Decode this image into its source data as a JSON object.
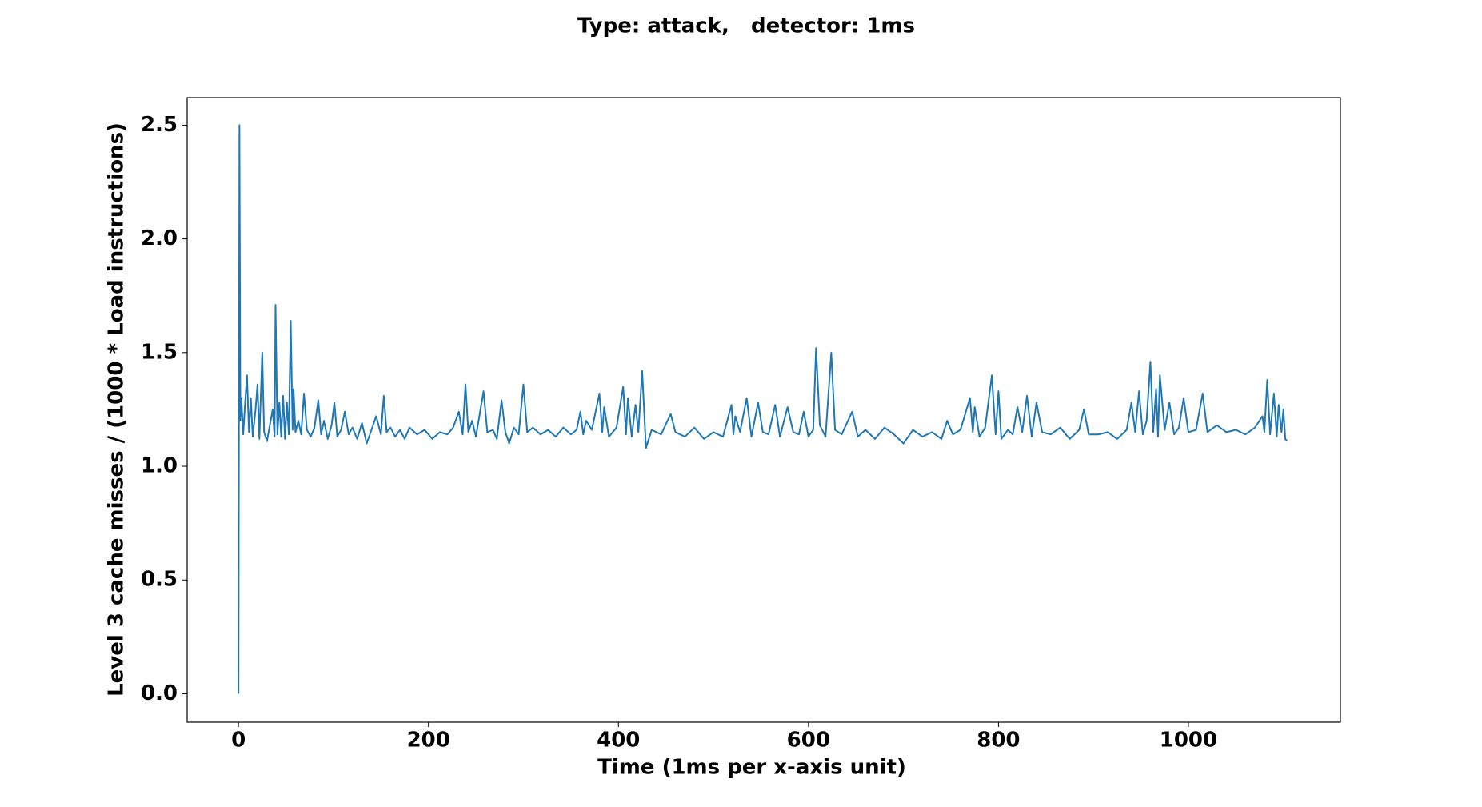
{
  "chart_data": {
    "type": "line",
    "title": "Type: attack,   detector: 1ms",
    "xlabel": "Time (1ms per x-axis unit)",
    "ylabel": "Level 3 cache misses / (1000 * Load instructions)",
    "color": "#1f77b4",
    "xlim": [
      -54,
      1160
    ],
    "ylim": [
      -0.125,
      2.621
    ],
    "xticks": [
      0,
      200,
      400,
      600,
      800,
      1000
    ],
    "yticks": [
      {
        "value": 0,
        "label": "0.0"
      },
      0.5,
      {
        "value": 1,
        "label": "1.0"
      },
      1.5,
      {
        "value": 2,
        "label": "2.0"
      },
      2.5
    ],
    "x": [
      0,
      1,
      2,
      3,
      5,
      7,
      9,
      11,
      13,
      15,
      18,
      20,
      22,
      25,
      27,
      30,
      33,
      36,
      38,
      39,
      41,
      43,
      45,
      47,
      49,
      51,
      53,
      55,
      57,
      58,
      60,
      63,
      66,
      69,
      72,
      76,
      80,
      84,
      87,
      90,
      94,
      98,
      101,
      104,
      108,
      112,
      116,
      120,
      125,
      130,
      135,
      140,
      145,
      150,
      153,
      156,
      160,
      165,
      170,
      175,
      180,
      188,
      196,
      204,
      212,
      220,
      226,
      232,
      236,
      239,
      242,
      246,
      250,
      258,
      262,
      268,
      272,
      277,
      281,
      285,
      290,
      295,
      300,
      304,
      310,
      318,
      326,
      334,
      342,
      350,
      356,
      360,
      363,
      366,
      372,
      380,
      383,
      385,
      390,
      398,
      405,
      408,
      410,
      414,
      418,
      421,
      425,
      429,
      435,
      445,
      455,
      460,
      470,
      480,
      490,
      500,
      510,
      519,
      521,
      523,
      528,
      535,
      540,
      547,
      552,
      558,
      565,
      570,
      578,
      584,
      590,
      595,
      600,
      605,
      608,
      612,
      618,
      624,
      628,
      635,
      646,
      652,
      660,
      670,
      680,
      690,
      700,
      710,
      720,
      730,
      740,
      746,
      752,
      760,
      770,
      773,
      775,
      780,
      786,
      793,
      797,
      800,
      803,
      810,
      815,
      820,
      825,
      830,
      835,
      840,
      846,
      855,
      865,
      875,
      885,
      890,
      895,
      905,
      915,
      925,
      935,
      940,
      944,
      948,
      952,
      956,
      960,
      963,
      966,
      968,
      970,
      975,
      980,
      985,
      990,
      995,
      1000,
      1008,
      1015,
      1020,
      1030,
      1040,
      1050,
      1060,
      1070,
      1078,
      1080,
      1083,
      1086,
      1090,
      1093,
      1095,
      1098,
      1100,
      1102,
      1104
    ],
    "values": [
      0.0,
      2.5,
      1.2,
      1.3,
      1.14,
      1.28,
      1.4,
      1.15,
      1.3,
      1.13,
      1.25,
      1.36,
      1.12,
      1.5,
      1.15,
      1.11,
      1.18,
      1.25,
      1.13,
      1.71,
      1.14,
      1.28,
      1.13,
      1.31,
      1.12,
      1.28,
      1.14,
      1.64,
      1.16,
      1.34,
      1.15,
      1.2,
      1.14,
      1.32,
      1.16,
      1.13,
      1.17,
      1.29,
      1.14,
      1.2,
      1.12,
      1.18,
      1.28,
      1.13,
      1.16,
      1.24,
      1.14,
      1.17,
      1.12,
      1.19,
      1.1,
      1.16,
      1.22,
      1.14,
      1.31,
      1.15,
      1.17,
      1.13,
      1.16,
      1.12,
      1.17,
      1.14,
      1.16,
      1.12,
      1.15,
      1.14,
      1.17,
      1.24,
      1.14,
      1.36,
      1.15,
      1.2,
      1.13,
      1.33,
      1.15,
      1.16,
      1.12,
      1.29,
      1.15,
      1.1,
      1.17,
      1.14,
      1.36,
      1.15,
      1.17,
      1.14,
      1.16,
      1.13,
      1.17,
      1.14,
      1.16,
      1.24,
      1.14,
      1.2,
      1.16,
      1.32,
      1.15,
      1.26,
      1.13,
      1.17,
      1.35,
      1.14,
      1.3,
      1.13,
      1.27,
      1.15,
      1.42,
      1.08,
      1.16,
      1.14,
      1.23,
      1.15,
      1.13,
      1.17,
      1.12,
      1.15,
      1.13,
      1.27,
      1.14,
      1.22,
      1.15,
      1.3,
      1.13,
      1.28,
      1.15,
      1.14,
      1.27,
      1.13,
      1.26,
      1.15,
      1.14,
      1.24,
      1.13,
      1.16,
      1.52,
      1.18,
      1.13,
      1.5,
      1.16,
      1.14,
      1.24,
      1.13,
      1.16,
      1.12,
      1.17,
      1.14,
      1.1,
      1.16,
      1.13,
      1.15,
      1.12,
      1.2,
      1.14,
      1.16,
      1.3,
      1.15,
      1.26,
      1.13,
      1.17,
      1.4,
      1.14,
      1.33,
      1.12,
      1.16,
      1.14,
      1.26,
      1.15,
      1.31,
      1.13,
      1.28,
      1.15,
      1.14,
      1.17,
      1.12,
      1.16,
      1.25,
      1.14,
      1.14,
      1.15,
      1.12,
      1.16,
      1.28,
      1.15,
      1.33,
      1.14,
      1.2,
      1.46,
      1.15,
      1.34,
      1.13,
      1.4,
      1.16,
      1.28,
      1.14,
      1.17,
      1.3,
      1.15,
      1.16,
      1.32,
      1.15,
      1.18,
      1.15,
      1.16,
      1.14,
      1.17,
      1.22,
      1.15,
      1.38,
      1.14,
      1.32,
      1.13,
      1.27,
      1.15,
      1.25,
      1.12,
      1.11
    ]
  }
}
